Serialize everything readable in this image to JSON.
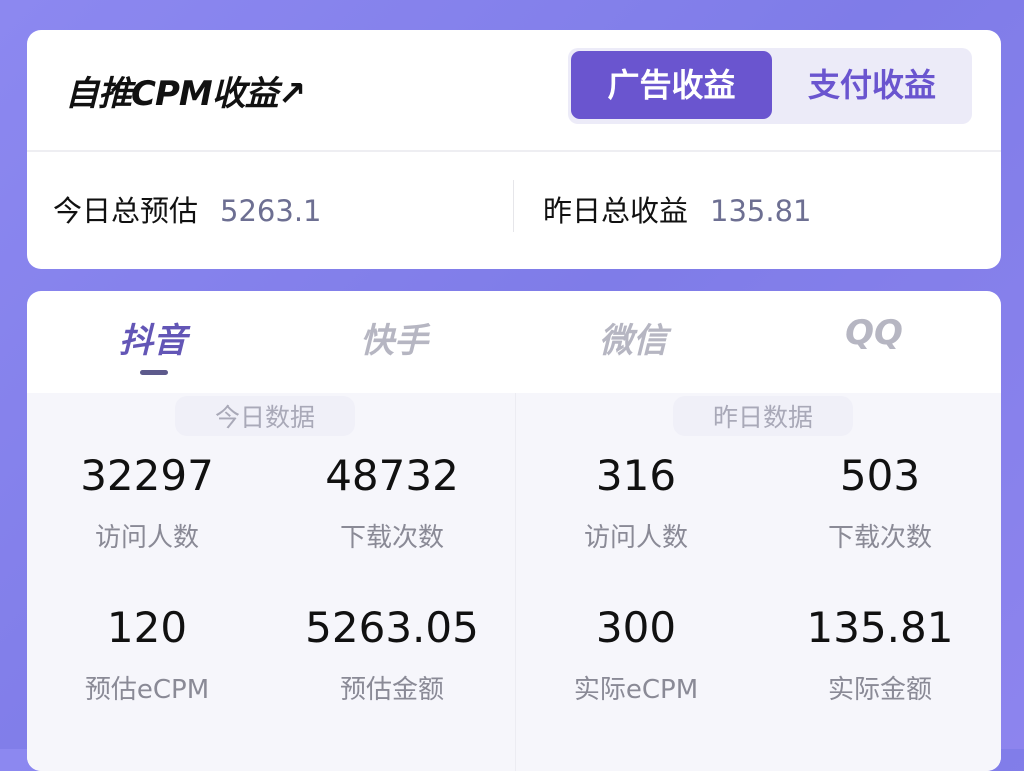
{
  "header": {
    "title": "自推CPM收益↗",
    "toggle": [
      "广告收益",
      "支付收益"
    ],
    "active_toggle": "广告收益"
  },
  "summary": {
    "today_label": "今日总预估",
    "today_value": "5263.1",
    "yesterday_label": "昨日总收益",
    "yesterday_value": "135.81"
  },
  "tabs": [
    "抖音",
    "快手",
    "微信",
    "QQ"
  ],
  "active_tab": "抖音",
  "today": {
    "title": "今日数据",
    "stats": [
      {
        "value": "32297",
        "label": "访问人数"
      },
      {
        "value": "48732",
        "label": "下载次数"
      },
      {
        "value": "120",
        "label": "预估eCPM"
      },
      {
        "value": "5263.05",
        "label": "预估金额"
      }
    ]
  },
  "yesterday": {
    "title": "昨日数据",
    "stats": [
      {
        "value": "316",
        "label": "访问人数"
      },
      {
        "value": "503",
        "label": "下载次数"
      },
      {
        "value": "300",
        "label": "实际eCPM"
      },
      {
        "value": "135.81",
        "label": "实际金额"
      }
    ]
  },
  "colors": {
    "accent": "#6a55cf",
    "background": "#8a86ee"
  }
}
